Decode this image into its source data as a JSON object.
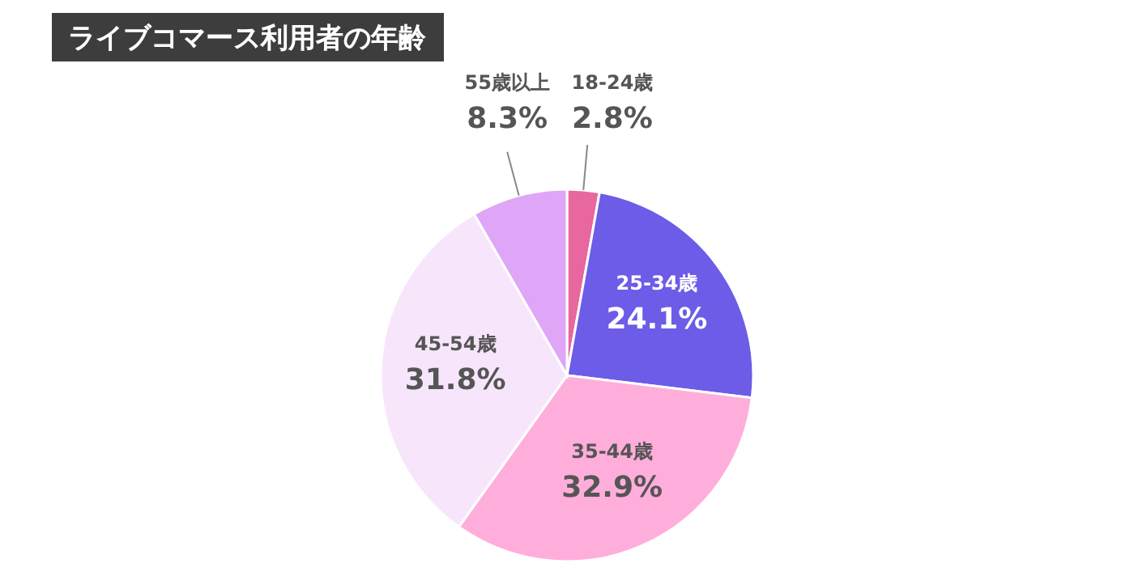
{
  "chart_data": {
    "type": "pie",
    "title": "ライブコマース利用者の年齢",
    "categories": [
      "18-24歳",
      "25-34歳",
      "35-44歳",
      "45-54歳",
      "55歳以上"
    ],
    "values": [
      2.8,
      24.1,
      32.9,
      31.8,
      8.3
    ],
    "value_labels": [
      "2.8%",
      "24.1%",
      "32.9%",
      "31.8%",
      "8.3%"
    ],
    "colors": [
      "#e8679f",
      "#6c5ce7",
      "#ffaedb",
      "#f7e6fb",
      "#dfa6f7"
    ]
  }
}
